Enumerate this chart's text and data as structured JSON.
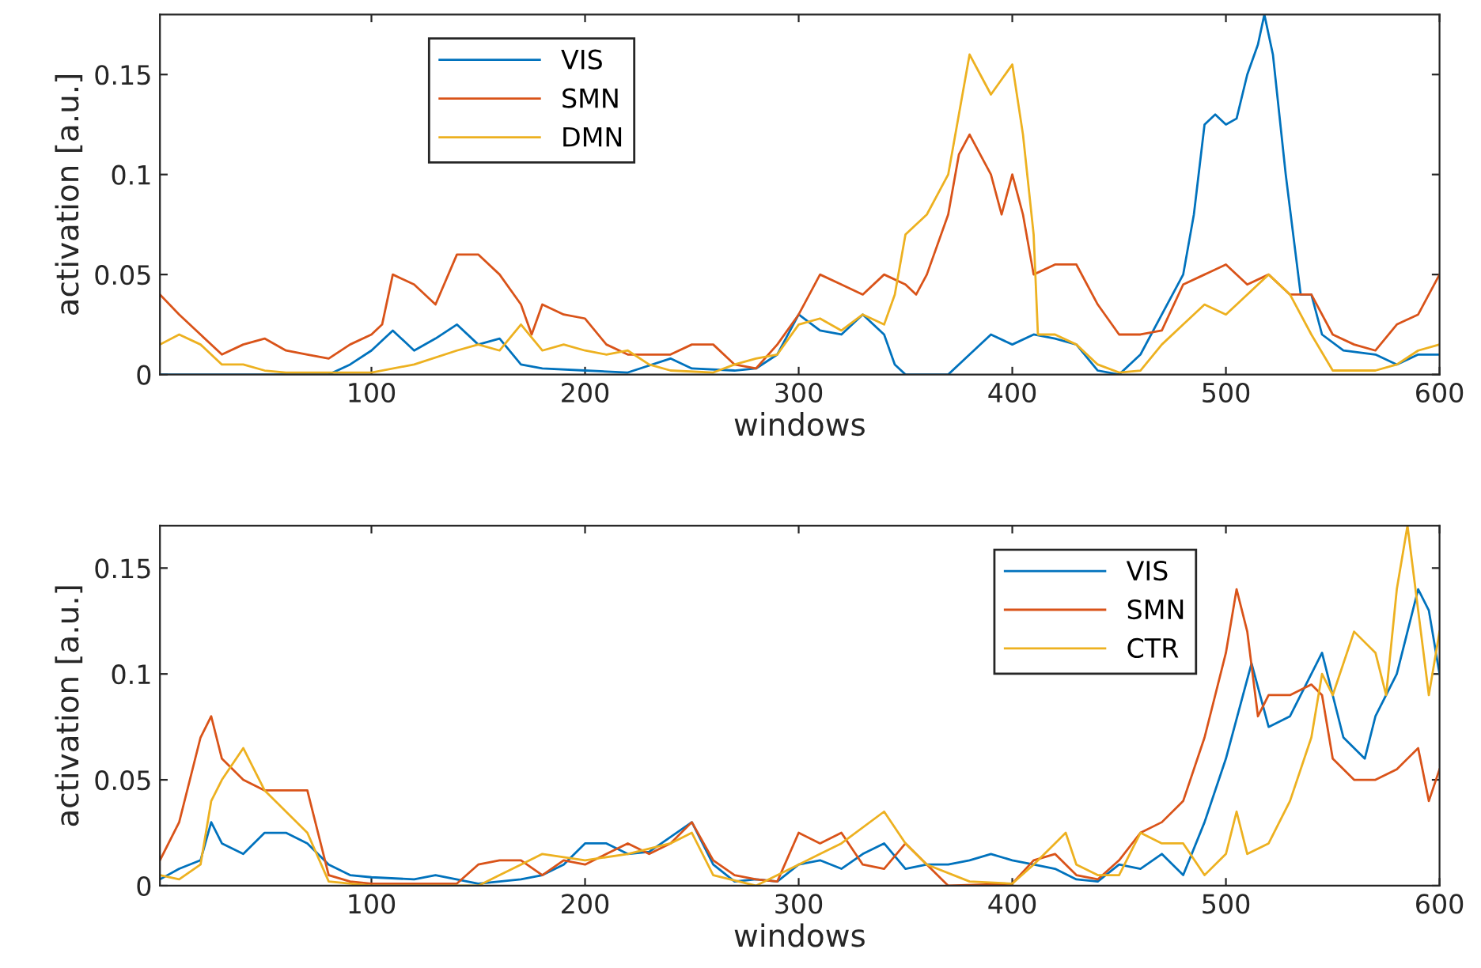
{
  "chart_data": [
    {
      "type": "line",
      "xlabel": "windows",
      "ylabel": "activation [a.u.]",
      "xlim": [
        1,
        600
      ],
      "ylim": [
        0,
        0.18
      ],
      "xticks": [
        100,
        200,
        300,
        400,
        500,
        600
      ],
      "yticks": [
        0,
        0.05,
        0.1,
        0.15
      ],
      "grid": false,
      "legend": "top left",
      "line_style": "solid",
      "marker": "none",
      "series": [
        {
          "name": "VIS",
          "color": "#0072bd",
          "x": [
            1,
            80,
            90,
            100,
            110,
            120,
            130,
            140,
            150,
            160,
            170,
            180,
            200,
            220,
            240,
            250,
            270,
            280,
            290,
            300,
            310,
            320,
            330,
            340,
            345,
            350,
            370,
            380,
            390,
            400,
            410,
            420,
            430,
            440,
            450,
            460,
            470,
            475,
            480,
            485,
            490,
            495,
            500,
            505,
            510,
            515,
            518,
            522,
            528,
            535,
            540,
            545,
            555,
            570,
            580,
            590,
            600
          ],
          "values": [
            0,
            0,
            0.005,
            0.012,
            0.022,
            0.012,
            0.018,
            0.025,
            0.015,
            0.018,
            0.005,
            0.003,
            0.002,
            0.001,
            0.008,
            0.003,
            0.002,
            0.003,
            0.01,
            0.03,
            0.022,
            0.02,
            0.03,
            0.02,
            0.005,
            0,
            0,
            0.01,
            0.02,
            0.015,
            0.02,
            0.018,
            0.015,
            0.002,
            0,
            0.01,
            0.03,
            0.04,
            0.05,
            0.08,
            0.125,
            0.13,
            0.125,
            0.128,
            0.15,
            0.165,
            0.18,
            0.16,
            0.1,
            0.04,
            0.04,
            0.02,
            0.012,
            0.01,
            0.005,
            0.01,
            0.01
          ]
        },
        {
          "name": "SMN",
          "color": "#d95319",
          "x": [
            1,
            10,
            20,
            30,
            40,
            50,
            60,
            70,
            80,
            90,
            100,
            105,
            110,
            120,
            130,
            140,
            150,
            160,
            170,
            175,
            180,
            190,
            200,
            210,
            220,
            240,
            250,
            260,
            270,
            280,
            290,
            300,
            310,
            320,
            330,
            340,
            350,
            355,
            360,
            370,
            375,
            380,
            390,
            395,
            400,
            405,
            410,
            420,
            430,
            440,
            450,
            460,
            470,
            480,
            490,
            500,
            510,
            520,
            530,
            540,
            550,
            560,
            570,
            580,
            590,
            600
          ],
          "values": [
            0.04,
            0.03,
            0.02,
            0.01,
            0.015,
            0.018,
            0.012,
            0.01,
            0.008,
            0.015,
            0.02,
            0.025,
            0.05,
            0.045,
            0.035,
            0.06,
            0.06,
            0.05,
            0.035,
            0.02,
            0.035,
            0.03,
            0.028,
            0.015,
            0.01,
            0.01,
            0.015,
            0.015,
            0.005,
            0.003,
            0.015,
            0.03,
            0.05,
            0.045,
            0.04,
            0.05,
            0.045,
            0.04,
            0.05,
            0.08,
            0.11,
            0.12,
            0.1,
            0.08,
            0.1,
            0.08,
            0.05,
            0.055,
            0.055,
            0.035,
            0.02,
            0.02,
            0.022,
            0.045,
            0.05,
            0.055,
            0.045,
            0.05,
            0.04,
            0.04,
            0.02,
            0.015,
            0.012,
            0.025,
            0.03,
            0.05
          ]
        },
        {
          "name": "DMN",
          "color": "#edb120",
          "x": [
            1,
            10,
            20,
            30,
            40,
            50,
            60,
            80,
            100,
            120,
            140,
            150,
            160,
            170,
            180,
            190,
            200,
            210,
            220,
            230,
            240,
            260,
            270,
            280,
            290,
            300,
            310,
            320,
            330,
            340,
            345,
            350,
            360,
            370,
            375,
            380,
            385,
            390,
            400,
            405,
            410,
            412,
            420,
            430,
            440,
            450,
            460,
            470,
            480,
            490,
            500,
            510,
            520,
            530,
            540,
            550,
            570,
            580,
            590,
            600
          ],
          "values": [
            0.015,
            0.02,
            0.015,
            0.005,
            0.005,
            0.002,
            0.001,
            0.001,
            0.001,
            0.005,
            0.012,
            0.015,
            0.012,
            0.025,
            0.012,
            0.015,
            0.012,
            0.01,
            0.012,
            0.005,
            0.002,
            0.001,
            0.005,
            0.008,
            0.01,
            0.025,
            0.028,
            0.022,
            0.03,
            0.025,
            0.04,
            0.07,
            0.08,
            0.1,
            0.13,
            0.16,
            0.15,
            0.14,
            0.155,
            0.12,
            0.07,
            0.02,
            0.02,
            0.015,
            0.005,
            0.001,
            0.002,
            0.015,
            0.025,
            0.035,
            0.03,
            0.04,
            0.05,
            0.04,
            0.02,
            0.002,
            0.002,
            0.005,
            0.012,
            0.015
          ]
        }
      ]
    },
    {
      "type": "line",
      "xlabel": "windows",
      "ylabel": "activation [a.u.]",
      "xlim": [
        1,
        600
      ],
      "ylim": [
        0,
        0.17
      ],
      "xticks": [
        100,
        200,
        300,
        400,
        500,
        600
      ],
      "yticks": [
        0,
        0.05,
        0.1,
        0.15
      ],
      "grid": false,
      "legend": "top right",
      "line_style": "solid",
      "marker": "none",
      "series": [
        {
          "name": "VIS",
          "color": "#0072bd",
          "x": [
            1,
            10,
            20,
            25,
            30,
            40,
            50,
            60,
            70,
            80,
            90,
            100,
            120,
            130,
            150,
            170,
            180,
            190,
            200,
            210,
            220,
            230,
            240,
            250,
            260,
            270,
            280,
            290,
            300,
            310,
            320,
            330,
            340,
            350,
            360,
            370,
            380,
            390,
            400,
            410,
            420,
            430,
            440,
            450,
            460,
            470,
            480,
            490,
            500,
            508,
            512,
            520,
            530,
            540,
            545,
            550,
            555,
            565,
            570,
            580,
            590,
            595,
            600
          ],
          "values": [
            0.003,
            0.008,
            0.012,
            0.03,
            0.02,
            0.015,
            0.025,
            0.025,
            0.02,
            0.01,
            0.005,
            0.004,
            0.003,
            0.005,
            0.001,
            0.003,
            0.005,
            0.01,
            0.02,
            0.02,
            0.015,
            0.016,
            0.023,
            0.03,
            0.01,
            0.002,
            0.003,
            0.002,
            0.01,
            0.012,
            0.008,
            0.015,
            0.02,
            0.008,
            0.01,
            0.01,
            0.012,
            0.015,
            0.012,
            0.01,
            0.008,
            0.003,
            0.002,
            0.01,
            0.008,
            0.015,
            0.005,
            0.03,
            0.06,
            0.09,
            0.105,
            0.075,
            0.08,
            0.1,
            0.11,
            0.09,
            0.07,
            0.06,
            0.08,
            0.1,
            0.14,
            0.13,
            0.1
          ]
        },
        {
          "name": "SMN",
          "color": "#d95319",
          "x": [
            1,
            10,
            15,
            20,
            25,
            30,
            40,
            50,
            60,
            70,
            80,
            90,
            100,
            140,
            150,
            160,
            170,
            180,
            190,
            200,
            210,
            220,
            230,
            240,
            250,
            260,
            270,
            280,
            290,
            300,
            310,
            320,
            330,
            340,
            350,
            360,
            370,
            400,
            410,
            420,
            430,
            440,
            450,
            460,
            470,
            480,
            490,
            500,
            505,
            510,
            515,
            520,
            530,
            540,
            545,
            550,
            560,
            570,
            580,
            590,
            595,
            600
          ],
          "values": [
            0.012,
            0.03,
            0.05,
            0.07,
            0.08,
            0.06,
            0.05,
            0.045,
            0.045,
            0.045,
            0.005,
            0.002,
            0.001,
            0.001,
            0.01,
            0.012,
            0.012,
            0.005,
            0.012,
            0.01,
            0.015,
            0.02,
            0.015,
            0.02,
            0.03,
            0.012,
            0.005,
            0.003,
            0.002,
            0.025,
            0.02,
            0.025,
            0.01,
            0.008,
            0.02,
            0.01,
            0,
            0.001,
            0.012,
            0.015,
            0.005,
            0.003,
            0.012,
            0.025,
            0.03,
            0.04,
            0.07,
            0.11,
            0.14,
            0.12,
            0.08,
            0.09,
            0.09,
            0.095,
            0.09,
            0.06,
            0.05,
            0.05,
            0.055,
            0.065,
            0.04,
            0.055
          ]
        },
        {
          "name": "CTR",
          "color": "#edb120",
          "x": [
            1,
            10,
            20,
            25,
            30,
            40,
            50,
            60,
            70,
            80,
            100,
            150,
            160,
            170,
            180,
            200,
            220,
            240,
            250,
            260,
            280,
            300,
            310,
            320,
            340,
            350,
            360,
            380,
            400,
            410,
            420,
            425,
            430,
            440,
            450,
            460,
            470,
            480,
            490,
            500,
            505,
            510,
            520,
            530,
            540,
            545,
            550,
            560,
            570,
            575,
            580,
            585,
            590,
            595,
            600
          ],
          "values": [
            0.005,
            0.003,
            0.01,
            0.04,
            0.05,
            0.065,
            0.045,
            0.035,
            0.025,
            0.002,
            0,
            0,
            0.005,
            0.01,
            0.015,
            0.012,
            0.015,
            0.02,
            0.025,
            0.005,
            0,
            0.01,
            0.015,
            0.02,
            0.035,
            0.02,
            0.01,
            0.002,
            0.001,
            0.01,
            0.02,
            0.025,
            0.01,
            0.005,
            0.005,
            0.025,
            0.02,
            0.02,
            0.005,
            0.015,
            0.035,
            0.015,
            0.02,
            0.04,
            0.07,
            0.1,
            0.09,
            0.12,
            0.11,
            0.09,
            0.14,
            0.17,
            0.13,
            0.09,
            0.12
          ]
        }
      ]
    }
  ]
}
